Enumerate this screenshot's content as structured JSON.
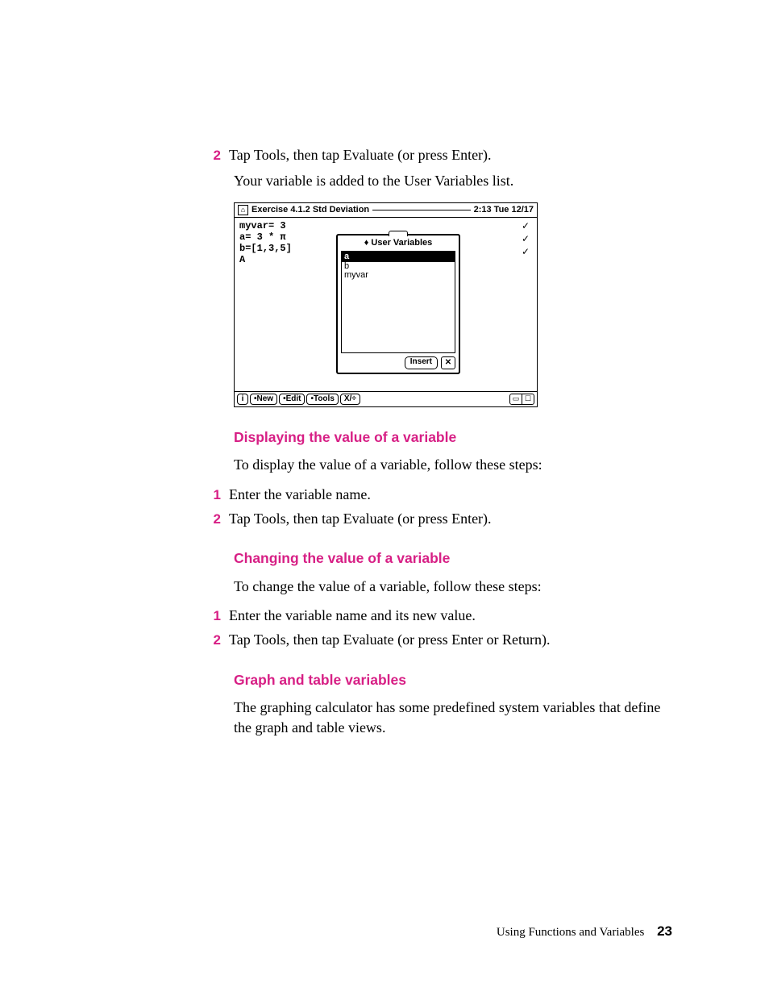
{
  "colors": {
    "accent": "#d71f85",
    "background": "#ffffff",
    "text": "#000000",
    "screenshot_border": "#000000",
    "screenshot_bg": "#ffffff"
  },
  "typography": {
    "body_font": "Georgia, serif",
    "body_size_pt": 13,
    "heading_font": "Arial, sans-serif",
    "heading_weight": 900,
    "step_number_font": "Arial Black, sans-serif"
  },
  "intro": {
    "step2_num": "2",
    "step2_text": "Tap Tools, then tap Evaluate (or press Enter).",
    "step2_sub": "Your variable is added to the User Variables list."
  },
  "screenshot": {
    "titlebar": {
      "home_icon": "⌂",
      "title": "Exercise 4.1.2 Std Deviation",
      "clock": "2:13 Tue 12/17"
    },
    "lines": [
      "myvar= 3",
      "a= 3 * π",
      "b=[1,3,5]",
      "",
      "A"
    ],
    "checks": [
      "✓",
      "✓",
      "✓"
    ],
    "popup": {
      "title": "♦ User Variables",
      "items": [
        "a",
        "b",
        "myvar"
      ],
      "selected_index": 0,
      "insert_label": "Insert",
      "close_label": "✕"
    },
    "footer": {
      "info": "i",
      "buttons": [
        "•New",
        "•Edit",
        "•Tools",
        "X/÷"
      ],
      "right_icons": {
        "blank": "",
        "card": "▭",
        "bubble": "▢"
      }
    }
  },
  "sections": {
    "display": {
      "heading": "Displaying the value of a variable",
      "intro": "To display the value of a variable, follow these steps:",
      "step1_num": "1",
      "step1_text": "Enter the variable name.",
      "step2_num": "2",
      "step2_text": "Tap Tools, then tap Evaluate (or press Enter)."
    },
    "change": {
      "heading": "Changing the value of a variable",
      "intro": "To change the value of a variable, follow these steps:",
      "step1_num": "1",
      "step1_text": "Enter the variable name and its new value.",
      "step2_num": "2",
      "step2_text": "Tap Tools, then tap Evaluate (or press Enter or Return)."
    },
    "graph": {
      "heading": "Graph and table variables",
      "body": "The graphing calculator has some predefined system variables that define the graph and table views."
    }
  },
  "footer": {
    "chapter": "Using Functions and Variables",
    "page": "23"
  }
}
